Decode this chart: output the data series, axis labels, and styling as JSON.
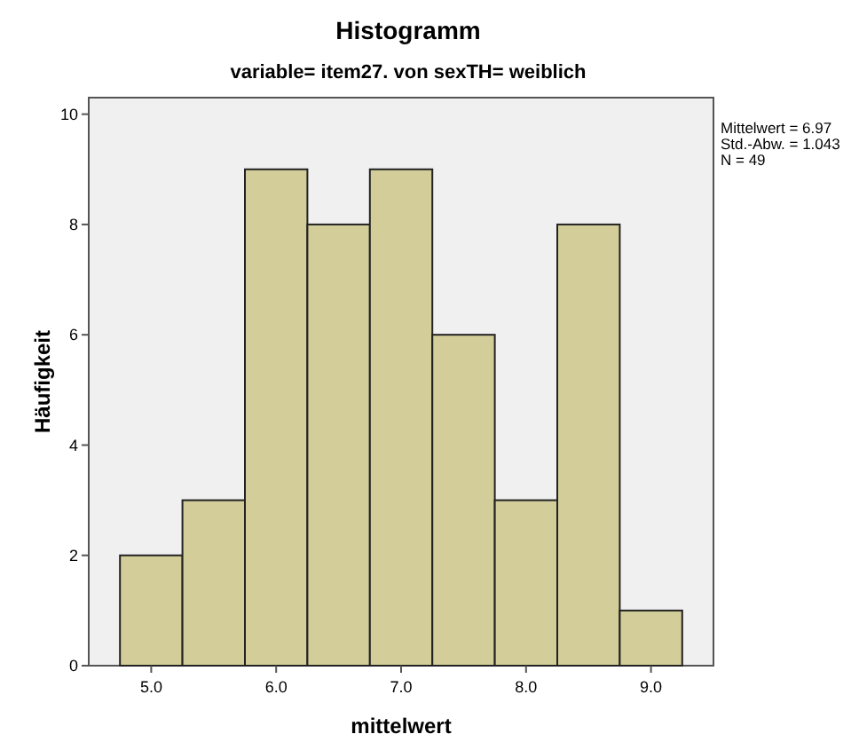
{
  "chart_data": {
    "type": "histogram",
    "title": "Histogramm",
    "subtitle": "variable= item27. von sexTH= weiblich",
    "xlabel": "mittelwert",
    "ylabel": "Häufigkeit",
    "bins": [
      4.75,
      5.25,
      5.75,
      6.25,
      6.75,
      7.25,
      7.75,
      8.25,
      8.75,
      9.25
    ],
    "values": [
      2,
      3,
      9,
      8,
      9,
      6,
      3,
      8,
      1
    ],
    "color": "#d3ce99",
    "xlim": [
      4.5,
      9.5
    ],
    "xticks": [
      {
        "value": 5,
        "label": "5.0"
      },
      {
        "value": 6,
        "label": "6.0"
      },
      {
        "value": 7,
        "label": "7.0"
      },
      {
        "value": 8,
        "label": "8.0"
      },
      {
        "value": 9,
        "label": "9.0"
      }
    ],
    "ylim": [
      0,
      10.3
    ],
    "yticks": [
      0,
      2,
      4,
      6,
      8,
      10
    ],
    "grid": false,
    "annotations": [
      "Mittelwert = 6.97",
      "Std.-Abw. = 1.043",
      "N = 49"
    ]
  }
}
